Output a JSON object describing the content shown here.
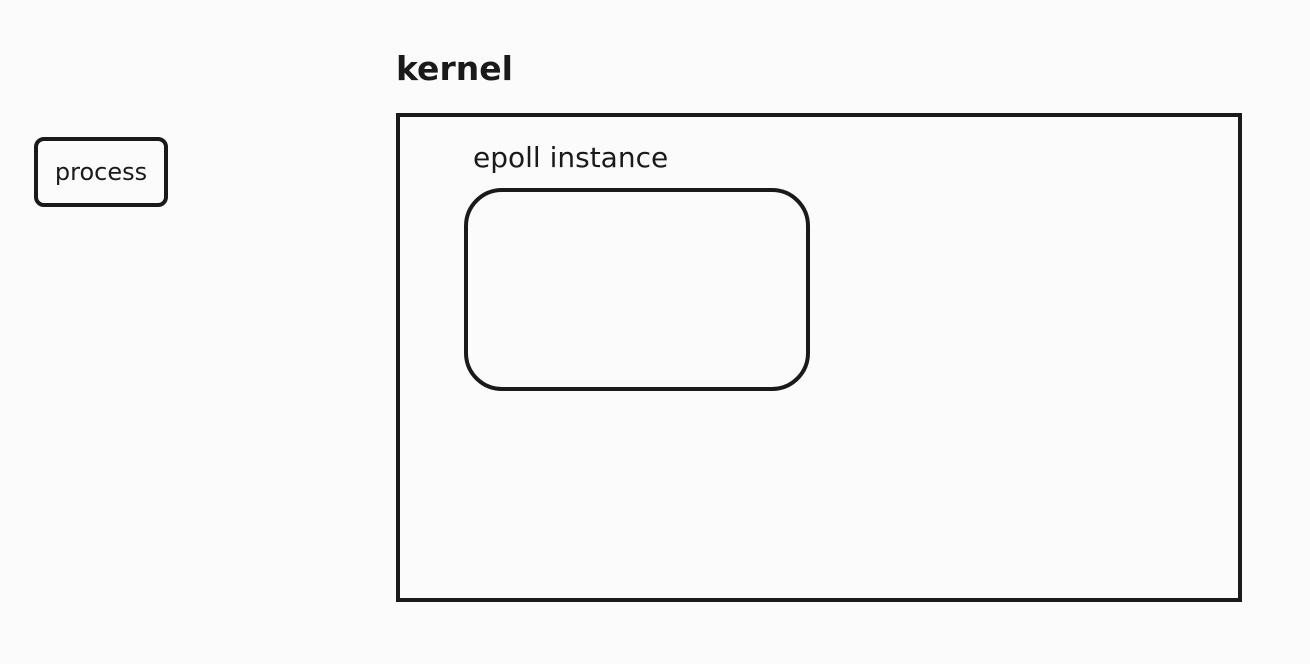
{
  "diagram": {
    "process": {
      "label": "process"
    },
    "kernel": {
      "title": "kernel",
      "epoll": {
        "label": "epoll instance"
      }
    }
  },
  "colors": {
    "background": "#fbfbfb",
    "stroke": "#1a1a1a",
    "text": "#1a1a1a"
  }
}
